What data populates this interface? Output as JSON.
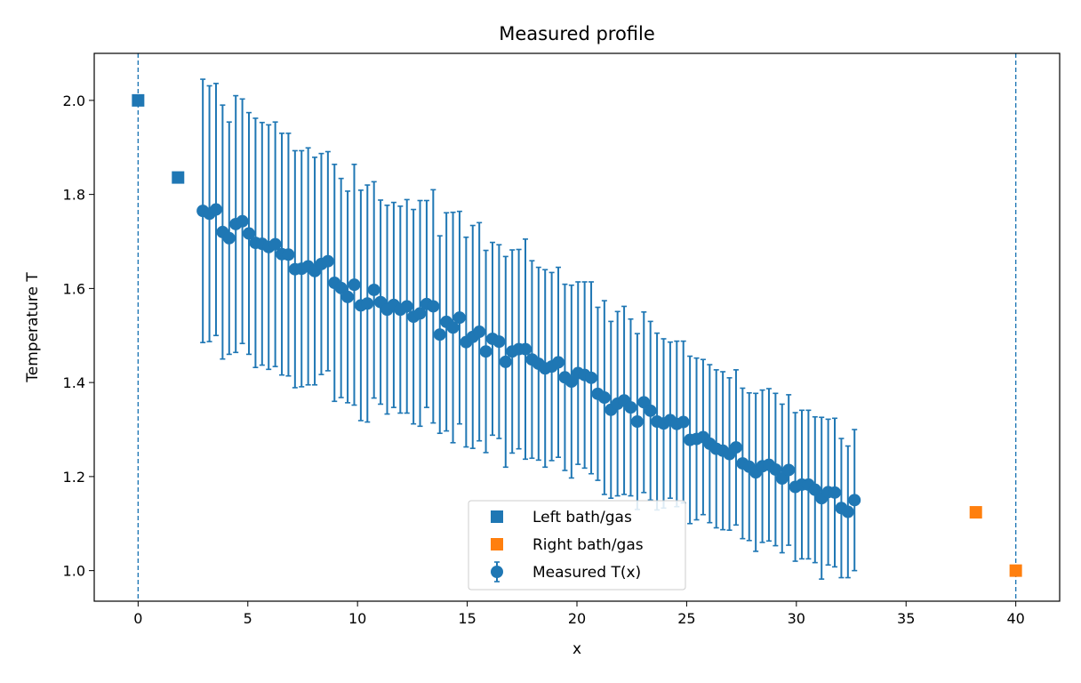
{
  "chart_data": {
    "type": "scatter",
    "title": "Measured profile",
    "xlabel": "x",
    "ylabel": "Temperature T",
    "xlim": [
      -2,
      42
    ],
    "ylim": [
      0.935,
      2.1
    ],
    "xticks": [
      0,
      5,
      10,
      15,
      20,
      25,
      30,
      35,
      40
    ],
    "yticks": [
      1.0,
      1.2,
      1.4,
      1.6,
      1.8,
      2.0
    ],
    "ytick_format": 1,
    "grid": false,
    "legend_position": "lower center",
    "vlines": {
      "x": [
        0,
        40
      ],
      "color": "#1f77b4",
      "style": "dashed"
    },
    "series": [
      {
        "name": "Left bath/gas",
        "kind": "square",
        "color": "#1f77b4",
        "points": [
          [
            0,
            2.0
          ],
          [
            1.82,
            1.836
          ]
        ]
      },
      {
        "name": "Right bath/gas",
        "kind": "square",
        "color": "#ff7f0e",
        "points": [
          [
            38.18,
            1.124
          ],
          [
            40,
            1.0
          ]
        ]
      },
      {
        "name": "Measured T(x)",
        "kind": "errorbar",
        "color": "#1f77b4",
        "points": [
          [
            2.95,
            1.765,
            0.28
          ],
          [
            3.25,
            1.759,
            0.272
          ],
          [
            3.55,
            1.768,
            0.268
          ],
          [
            3.85,
            1.72,
            0.27
          ],
          [
            4.15,
            1.707,
            0.247
          ],
          [
            4.45,
            1.737,
            0.273
          ],
          [
            4.75,
            1.743,
            0.26
          ],
          [
            5.05,
            1.717,
            0.257
          ],
          [
            5.35,
            1.697,
            0.265
          ],
          [
            5.65,
            1.695,
            0.258
          ],
          [
            5.95,
            1.688,
            0.26
          ],
          [
            6.25,
            1.694,
            0.26
          ],
          [
            6.55,
            1.673,
            0.257
          ],
          [
            6.85,
            1.672,
            0.258
          ],
          [
            7.15,
            1.641,
            0.252
          ],
          [
            7.45,
            1.642,
            0.251
          ],
          [
            7.75,
            1.647,
            0.252
          ],
          [
            8.05,
            1.637,
            0.242
          ],
          [
            8.35,
            1.652,
            0.235
          ],
          [
            8.65,
            1.658,
            0.233
          ],
          [
            8.95,
            1.612,
            0.252
          ],
          [
            9.25,
            1.601,
            0.233
          ],
          [
            9.55,
            1.582,
            0.225
          ],
          [
            9.85,
            1.608,
            0.256
          ],
          [
            10.15,
            1.564,
            0.245
          ],
          [
            10.45,
            1.568,
            0.252
          ],
          [
            10.75,
            1.597,
            0.23
          ],
          [
            11.05,
            1.571,
            0.217
          ],
          [
            11.35,
            1.555,
            0.222
          ],
          [
            11.65,
            1.565,
            0.218
          ],
          [
            11.95,
            1.555,
            0.22
          ],
          [
            12.25,
            1.562,
            0.227
          ],
          [
            12.55,
            1.54,
            0.228
          ],
          [
            12.85,
            1.547,
            0.24
          ],
          [
            13.15,
            1.567,
            0.22
          ],
          [
            13.45,
            1.562,
            0.248
          ],
          [
            13.75,
            1.502,
            0.21
          ],
          [
            14.05,
            1.529,
            0.232
          ],
          [
            14.35,
            1.517,
            0.245
          ],
          [
            14.65,
            1.538,
            0.226
          ],
          [
            14.95,
            1.486,
            0.223
          ],
          [
            15.25,
            1.497,
            0.237
          ],
          [
            15.55,
            1.508,
            0.232
          ],
          [
            15.85,
            1.466,
            0.215
          ],
          [
            16.15,
            1.493,
            0.205
          ],
          [
            16.45,
            1.487,
            0.206
          ],
          [
            16.75,
            1.444,
            0.224
          ],
          [
            17.05,
            1.466,
            0.216
          ],
          [
            17.35,
            1.471,
            0.212
          ],
          [
            17.65,
            1.471,
            0.234
          ],
          [
            17.95,
            1.449,
            0.21
          ],
          [
            18.25,
            1.44,
            0.205
          ],
          [
            18.55,
            1.43,
            0.21
          ],
          [
            18.85,
            1.434,
            0.2
          ],
          [
            19.15,
            1.443,
            0.202
          ],
          [
            19.45,
            1.411,
            0.198
          ],
          [
            19.75,
            1.402,
            0.205
          ],
          [
            20.05,
            1.42,
            0.194
          ],
          [
            20.35,
            1.416,
            0.198
          ],
          [
            20.65,
            1.41,
            0.204
          ],
          [
            20.95,
            1.376,
            0.184
          ],
          [
            21.25,
            1.368,
            0.206
          ],
          [
            21.55,
            1.342,
            0.188
          ],
          [
            21.85,
            1.355,
            0.196
          ],
          [
            22.15,
            1.362,
            0.2
          ],
          [
            22.45,
            1.347,
            0.188
          ],
          [
            22.75,
            1.317,
            0.187
          ],
          [
            23.05,
            1.358,
            0.192
          ],
          [
            23.35,
            1.34,
            0.19
          ],
          [
            23.65,
            1.317,
            0.188
          ],
          [
            23.95,
            1.313,
            0.18
          ],
          [
            24.25,
            1.32,
            0.166
          ],
          [
            24.55,
            1.312,
            0.176
          ],
          [
            24.85,
            1.316,
            0.172
          ],
          [
            25.15,
            1.278,
            0.178
          ],
          [
            25.45,
            1.28,
            0.172
          ],
          [
            25.75,
            1.284,
            0.165
          ],
          [
            26.05,
            1.27,
            0.168
          ],
          [
            26.35,
            1.259,
            0.168
          ],
          [
            26.65,
            1.255,
            0.168
          ],
          [
            26.95,
            1.248,
            0.162
          ],
          [
            27.25,
            1.262,
            0.165
          ],
          [
            27.55,
            1.228,
            0.16
          ],
          [
            27.85,
            1.221,
            0.157
          ],
          [
            28.15,
            1.209,
            0.168
          ],
          [
            28.45,
            1.222,
            0.162
          ],
          [
            28.75,
            1.225,
            0.162
          ],
          [
            29.05,
            1.215,
            0.162
          ],
          [
            29.35,
            1.196,
            0.158
          ],
          [
            29.65,
            1.214,
            0.16
          ],
          [
            29.95,
            1.178,
            0.158
          ],
          [
            30.25,
            1.183,
            0.158
          ],
          [
            30.55,
            1.183,
            0.158
          ],
          [
            30.85,
            1.172,
            0.155
          ],
          [
            31.15,
            1.154,
            0.172
          ],
          [
            31.45,
            1.167,
            0.155
          ],
          [
            31.75,
            1.166,
            0.158
          ],
          [
            32.05,
            1.133,
            0.148
          ],
          [
            32.35,
            1.125,
            0.14
          ],
          [
            32.65,
            1.15,
            0.15
          ]
        ]
      }
    ]
  }
}
